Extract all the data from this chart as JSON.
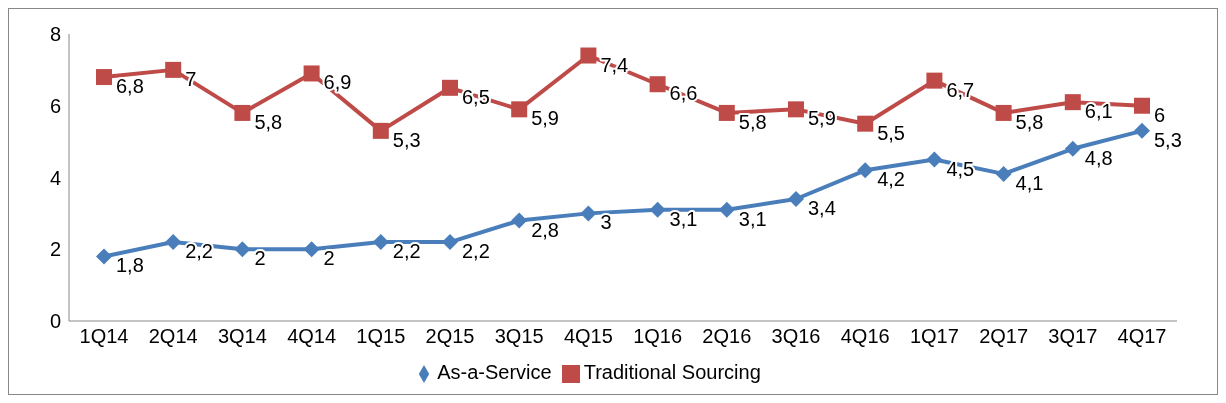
{
  "chart_data": {
    "type": "line",
    "categories": [
      "1Q14",
      "2Q14",
      "3Q14",
      "4Q14",
      "1Q15",
      "2Q15",
      "3Q15",
      "4Q15",
      "1Q16",
      "2Q16",
      "3Q16",
      "4Q16",
      "1Q17",
      "2Q17",
      "3Q17",
      "4Q17"
    ],
    "series": [
      {
        "name": "As-a-Service",
        "color": "#4a7ebb",
        "marker": "diamond",
        "values": [
          1.8,
          2.2,
          2,
          2,
          2.2,
          2.2,
          2.8,
          3,
          3.1,
          3.1,
          3.4,
          4.2,
          4.5,
          4.1,
          4.8,
          5.3
        ],
        "value_labels": [
          "1,8",
          "2,2",
          "2",
          "2",
          "2,2",
          "2,2",
          "2,8",
          "3",
          "3,1",
          "3,1",
          "3,4",
          "4,2",
          "4,5",
          "4,1",
          "4,8",
          "5,3"
        ]
      },
      {
        "name": "Traditional Sourcing",
        "color": "#be4b48",
        "marker": "square",
        "values": [
          6.8,
          7,
          5.8,
          6.9,
          5.3,
          6.5,
          5.9,
          7.4,
          6.6,
          5.8,
          5.9,
          5.5,
          6.7,
          5.8,
          6.1,
          6
        ],
        "value_labels": [
          "6,8",
          "7",
          "5,8",
          "6,9",
          "5,3",
          "6,5",
          "5,9",
          "7,4",
          "6,6",
          "5,8",
          "5,9",
          "5,5",
          "6,7",
          "5,8",
          "6,1",
          "6"
        ]
      }
    ],
    "ylim": [
      0,
      8
    ],
    "yticks": [
      0,
      2,
      4,
      6,
      8
    ],
    "legend": "bottom"
  }
}
